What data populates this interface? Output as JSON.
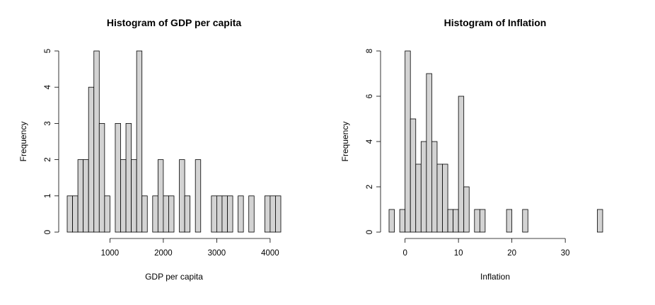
{
  "chart_data": [
    {
      "type": "bar",
      "title": "Histogram of GDP per capita",
      "xlabel": "GDP per capita",
      "ylabel": "Frequency",
      "xlim": [
        200,
        4200
      ],
      "ylim": [
        0,
        5
      ],
      "x_ticks": [
        1000,
        2000,
        3000,
        4000
      ],
      "y_ticks": [
        0,
        1,
        2,
        3,
        4,
        5
      ],
      "bin_width": 100,
      "bins": [
        {
          "start": 200,
          "value": 1
        },
        {
          "start": 300,
          "value": 1
        },
        {
          "start": 400,
          "value": 2
        },
        {
          "start": 500,
          "value": 2
        },
        {
          "start": 600,
          "value": 4
        },
        {
          "start": 700,
          "value": 5
        },
        {
          "start": 800,
          "value": 3
        },
        {
          "start": 900,
          "value": 1
        },
        {
          "start": 1000,
          "value": 0
        },
        {
          "start": 1100,
          "value": 3
        },
        {
          "start": 1200,
          "value": 2
        },
        {
          "start": 1300,
          "value": 3
        },
        {
          "start": 1400,
          "value": 2
        },
        {
          "start": 1500,
          "value": 5
        },
        {
          "start": 1600,
          "value": 1
        },
        {
          "start": 1700,
          "value": 0
        },
        {
          "start": 1800,
          "value": 1
        },
        {
          "start": 1900,
          "value": 2
        },
        {
          "start": 2000,
          "value": 1
        },
        {
          "start": 2100,
          "value": 1
        },
        {
          "start": 2200,
          "value": 0
        },
        {
          "start": 2300,
          "value": 2
        },
        {
          "start": 2400,
          "value": 1
        },
        {
          "start": 2500,
          "value": 0
        },
        {
          "start": 2600,
          "value": 2
        },
        {
          "start": 2700,
          "value": 0
        },
        {
          "start": 2800,
          "value": 0
        },
        {
          "start": 2900,
          "value": 1
        },
        {
          "start": 3000,
          "value": 1
        },
        {
          "start": 3100,
          "value": 1
        },
        {
          "start": 3200,
          "value": 1
        },
        {
          "start": 3300,
          "value": 0
        },
        {
          "start": 3400,
          "value": 1
        },
        {
          "start": 3500,
          "value": 0
        },
        {
          "start": 3600,
          "value": 1
        },
        {
          "start": 3700,
          "value": 0
        },
        {
          "start": 3800,
          "value": 0
        },
        {
          "start": 3900,
          "value": 1
        },
        {
          "start": 4000,
          "value": 1
        },
        {
          "start": 4100,
          "value": 1
        }
      ],
      "bar_color": "#d3d3d3",
      "grid": false
    },
    {
      "type": "bar",
      "title": "Histogram of Inflation",
      "xlabel": "Inflation",
      "ylabel": "Frequency",
      "xlim": [
        -3,
        37
      ],
      "ylim": [
        0,
        8
      ],
      "x_ticks": [
        0,
        10,
        20,
        30
      ],
      "y_ticks": [
        0,
        2,
        4,
        6,
        8
      ],
      "bin_width": 1,
      "bins": [
        {
          "start": -3,
          "value": 1
        },
        {
          "start": -2,
          "value": 0
        },
        {
          "start": -1,
          "value": 1
        },
        {
          "start": 0,
          "value": 8
        },
        {
          "start": 1,
          "value": 5
        },
        {
          "start": 2,
          "value": 3
        },
        {
          "start": 3,
          "value": 4
        },
        {
          "start": 4,
          "value": 7
        },
        {
          "start": 5,
          "value": 4
        },
        {
          "start": 6,
          "value": 3
        },
        {
          "start": 7,
          "value": 3
        },
        {
          "start": 8,
          "value": 1
        },
        {
          "start": 9,
          "value": 1
        },
        {
          "start": 10,
          "value": 6
        },
        {
          "start": 11,
          "value": 2
        },
        {
          "start": 12,
          "value": 0
        },
        {
          "start": 13,
          "value": 1
        },
        {
          "start": 14,
          "value": 1
        },
        {
          "start": 15,
          "value": 0
        },
        {
          "start": 16,
          "value": 0
        },
        {
          "start": 17,
          "value": 0
        },
        {
          "start": 18,
          "value": 0
        },
        {
          "start": 19,
          "value": 1
        },
        {
          "start": 20,
          "value": 0
        },
        {
          "start": 21,
          "value": 0
        },
        {
          "start": 22,
          "value": 1
        },
        {
          "start": 23,
          "value": 0
        },
        {
          "start": 24,
          "value": 0
        },
        {
          "start": 25,
          "value": 0
        },
        {
          "start": 26,
          "value": 0
        },
        {
          "start": 27,
          "value": 0
        },
        {
          "start": 28,
          "value": 0
        },
        {
          "start": 29,
          "value": 0
        },
        {
          "start": 30,
          "value": 0
        },
        {
          "start": 31,
          "value": 0
        },
        {
          "start": 32,
          "value": 0
        },
        {
          "start": 33,
          "value": 0
        },
        {
          "start": 34,
          "value": 0
        },
        {
          "start": 35,
          "value": 0
        },
        {
          "start": 36,
          "value": 1
        }
      ],
      "bar_color": "#d3d3d3",
      "grid": false
    }
  ]
}
